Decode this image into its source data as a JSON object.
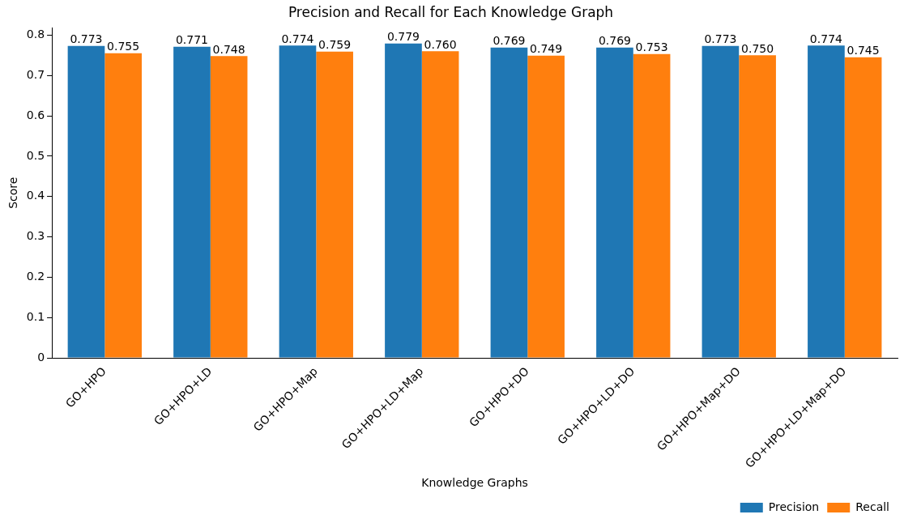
{
  "chart_data": {
    "type": "bar",
    "title": "Precision and Recall for Each Knowledge Graph",
    "xlabel": "Knowledge Graphs",
    "ylabel": "Score",
    "categories": [
      "GO+HPO",
      "GO+HPO+LD",
      "GO+HPO+Map",
      "GO+HPO+LD+Map",
      "GO+HPO+DO",
      "GO+HPO+LD+DO",
      "GO+HPO+Map+DO",
      "GO+HPO+LD+Map+DO"
    ],
    "series": [
      {
        "name": "Precision",
        "color": "#1f77b4",
        "values": [
          0.773,
          0.771,
          0.774,
          0.779,
          0.769,
          0.769,
          0.773,
          0.774
        ],
        "value_labels": [
          "0.773",
          "0.771",
          "0.774",
          "0.779",
          "0.769",
          "0.769",
          "0.773",
          "0.774"
        ]
      },
      {
        "name": "Recall",
        "color": "#ff7f0e",
        "values": [
          0.755,
          0.748,
          0.759,
          0.76,
          0.749,
          0.753,
          0.75,
          0.745
        ],
        "value_labels": [
          "0.755",
          "0.748",
          "0.759",
          "0.760",
          "0.749",
          "0.753",
          "0.750",
          "0.745"
        ]
      }
    ],
    "ylim": [
      0,
      0.818
    ],
    "yticks": [
      0,
      0.1,
      0.2,
      0.3,
      0.4,
      0.5,
      0.6,
      0.7,
      0.8
    ],
    "grid": false,
    "legend": "bottom right"
  }
}
